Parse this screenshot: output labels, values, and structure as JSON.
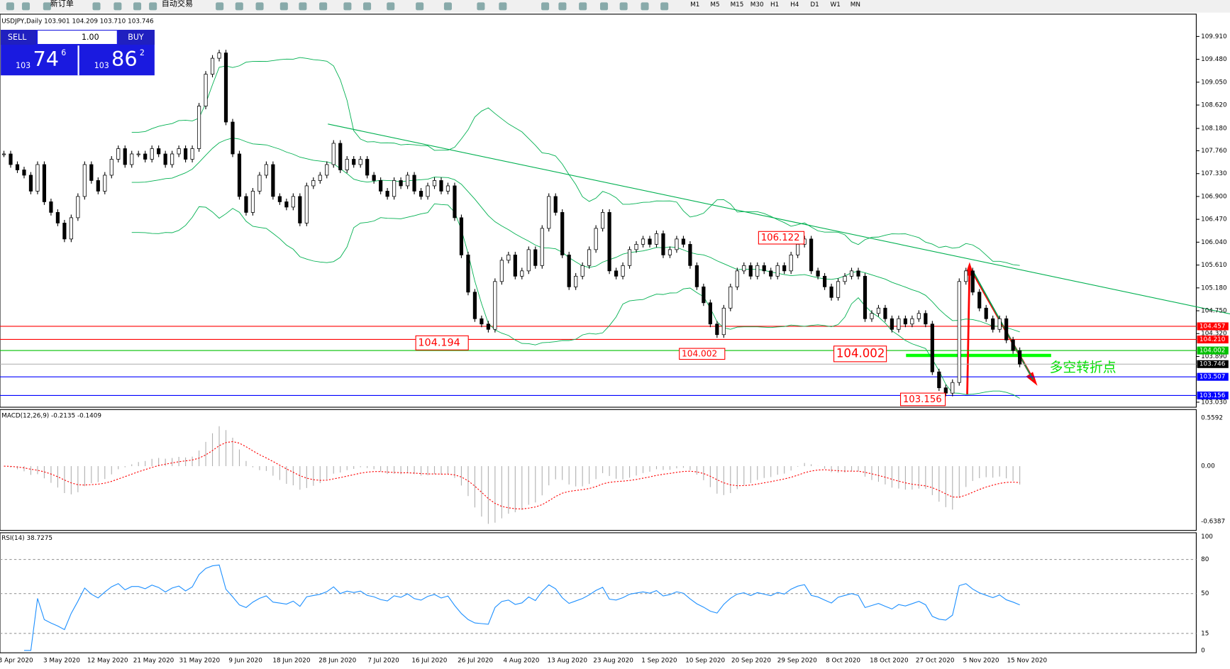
{
  "toolbar": {
    "new_order": "新订单",
    "auto_trading": "自动交易",
    "timeframes": [
      "M1",
      "M5",
      "M15",
      "M30",
      "H1",
      "H4",
      "D1",
      "W1",
      "MN"
    ]
  },
  "trade_panel": {
    "sell": "SELL",
    "buy": "BUY",
    "lots": "1.00",
    "sell_big": "103",
    "sell_main": "74",
    "sell_pip": "6",
    "buy_big": "103",
    "buy_main": "86",
    "buy_pip": "2"
  },
  "chart_data": {
    "type": "candlestick",
    "title": "USDJPY,Daily  103.901 104.209 103.710 103.746",
    "values": [
      107.7,
      107.5,
      107.4,
      107.3,
      107.0,
      107.5,
      106.8,
      106.6,
      106.4,
      106.1,
      106.5,
      106.9,
      107.5,
      107.2,
      107.0,
      107.3,
      107.6,
      107.8,
      107.5,
      107.7,
      107.7,
      107.6,
      107.8,
      107.7,
      107.5,
      107.7,
      107.8,
      107.6,
      107.8,
      108.6,
      109.2,
      109.5,
      109.6,
      108.3,
      107.7,
      106.9,
      106.6,
      107.0,
      107.3,
      107.5,
      106.9,
      106.8,
      106.7,
      106.9,
      106.4,
      107.1,
      107.2,
      107.3,
      107.5,
      107.9,
      107.4,
      107.6,
      107.5,
      107.6,
      107.3,
      107.2,
      107.0,
      106.9,
      107.2,
      107.1,
      107.3,
      107.0,
      106.9,
      107.1,
      107.2,
      107.0,
      107.1,
      106.5,
      105.8,
      105.1,
      104.6,
      104.5,
      104.4,
      105.3,
      105.7,
      105.8,
      105.4,
      105.5,
      105.9,
      105.6,
      106.3,
      106.9,
      106.6,
      105.8,
      105.2,
      105.4,
      105.6,
      105.9,
      106.3,
      106.6,
      105.5,
      105.4,
      105.6,
      105.9,
      106.0,
      106.1,
      106.0,
      106.2,
      105.8,
      105.9,
      106.1,
      106.0,
      105.6,
      105.2,
      104.9,
      104.5,
      104.3,
      104.8,
      105.2,
      105.5,
      105.6,
      105.4,
      105.6,
      105.5,
      105.4,
      105.6,
      105.5,
      105.8,
      106.0,
      106.1,
      105.5,
      105.4,
      105.2,
      105.0,
      105.3,
      105.4,
      105.5,
      105.4,
      104.6,
      104.7,
      104.8,
      104.6,
      104.4,
      104.6,
      104.5,
      104.6,
      104.7,
      104.5,
      103.6,
      103.3,
      103.2,
      103.4,
      105.3,
      105.5,
      105.1,
      104.8,
      104.6,
      104.4,
      104.6,
      104.2,
      104.0,
      103.746
    ],
    "x_labels": [
      "3 Apr 2020",
      "3 May 2020",
      "12 May 2020",
      "21 May 2020",
      "31 May 2020",
      "9 Jun 2020",
      "18 Jun 2020",
      "28 Jun 2020",
      "7 Jul 2020",
      "16 Jul 2020",
      "26 Jul 2020",
      "4 Aug 2020",
      "13 Aug 2020",
      "23 Aug 2020",
      "1 Sep 2020",
      "10 Sep 2020",
      "20 Sep 2020",
      "29 Sep 2020",
      "8 Oct 2020",
      "18 Oct 2020",
      "27 Oct 2020",
      "5 Nov 2020",
      "15 Nov 2020"
    ],
    "ylim": [
      102.95,
      110.3
    ],
    "yticks": [
      {
        "value": 109.91,
        "label": "109.910"
      },
      {
        "value": 109.48,
        "label": "109.480"
      },
      {
        "value": 109.05,
        "label": "109.050"
      },
      {
        "value": 108.62,
        "label": "108.620"
      },
      {
        "value": 108.18,
        "label": "108.180"
      },
      {
        "value": 107.76,
        "label": "107.760"
      },
      {
        "value": 107.33,
        "label": "107.330"
      },
      {
        "value": 106.9,
        "label": "106.900"
      },
      {
        "value": 106.47,
        "label": "106.470"
      },
      {
        "value": 106.04,
        "label": "106.040"
      },
      {
        "value": 105.61,
        "label": "105.610"
      },
      {
        "value": 105.18,
        "label": "105.180"
      },
      {
        "value": 104.75,
        "label": "104.750"
      },
      {
        "value": 104.32,
        "label": "104.320"
      },
      {
        "value": 103.89,
        "label": "103.890"
      },
      {
        "value": 103.03,
        "label": "103.030"
      }
    ],
    "levels": [
      {
        "value": 104.457,
        "color": "#ff0000"
      },
      {
        "value": 104.21,
        "label": "104.210",
        "color": "#ff0000"
      },
      {
        "value": 104.002,
        "color": "#00c000"
      },
      {
        "value": 103.746,
        "color": "#000000"
      },
      {
        "value": 103.507,
        "color": "#0000ff"
      },
      {
        "value": 103.156,
        "color": "#0000ff"
      }
    ],
    "annotations": [
      104.194,
      104.002,
      104.002,
      106.122,
      103.156
    ],
    "note": "多空转折点",
    "macd": {
      "label": "MACD(12,26,9) -0.2135 -0.1409",
      "ylim": [
        -0.68,
        0.6
      ],
      "yticks": [
        0.5592,
        {
          "value": 0,
          "label": "0.00"
        },
        -0.6387
      ]
    },
    "rsi": {
      "label": "RSI(14) 38.7275",
      "ylim": [
        0,
        100
      ],
      "yticks": [
        100,
        80,
        50,
        15,
        0
      ]
    }
  }
}
